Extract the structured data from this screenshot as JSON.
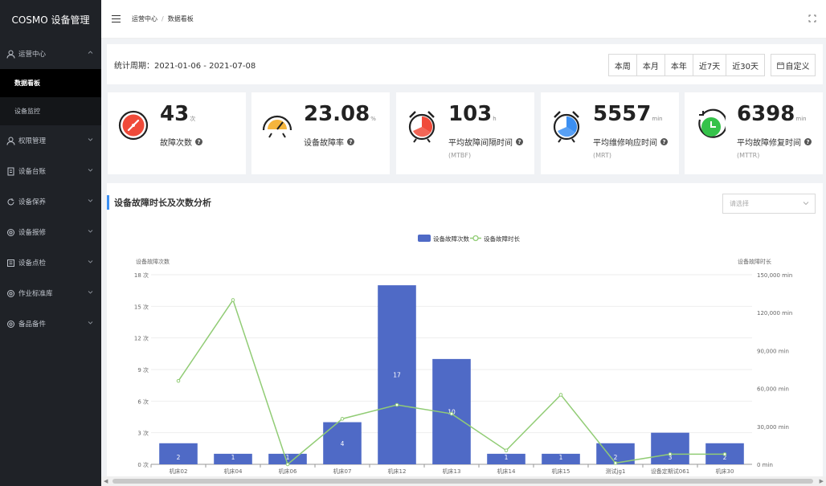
{
  "app": {
    "title": "COSMO 设备管理"
  },
  "sidebar": {
    "groups": [
      {
        "label": "运营中心",
        "icon": "user-icon",
        "expanded": true,
        "children": [
          {
            "label": "数据看板",
            "active": true
          },
          {
            "label": "设备监控",
            "active": false
          }
        ]
      },
      {
        "label": "权限管理",
        "icon": "user-icon"
      },
      {
        "label": "设备台账",
        "icon": "ledger-icon"
      },
      {
        "label": "设备保养",
        "icon": "refresh-icon"
      },
      {
        "label": "设备报修",
        "icon": "gear-icon"
      },
      {
        "label": "设备点检",
        "icon": "checklist-icon"
      },
      {
        "label": "作业标准库",
        "icon": "gear-icon"
      },
      {
        "label": "备品备件",
        "icon": "gear-icon"
      }
    ]
  },
  "header": {
    "breadcrumb": [
      "运营中心",
      "数据看板"
    ],
    "separator": "/"
  },
  "period": {
    "label": "统计周期：2021-01-06 - 2021-07-08",
    "buttons": [
      "本周",
      "本月",
      "本年",
      "近7天",
      "近30天"
    ],
    "custom_label": "自定义"
  },
  "kpis": [
    {
      "value": "43",
      "unit": "次",
      "label": "故障次数",
      "sub": "",
      "icon": "fault-count-icon",
      "color": "#f04b3a"
    },
    {
      "value": "23.08",
      "unit": "%",
      "label": "设备故障率",
      "sub": "",
      "icon": "gauge-icon",
      "color": "#f5b53d"
    },
    {
      "value": "103",
      "unit": "h",
      "label": "平均故障间隔时间",
      "sub": "(MTBF)",
      "icon": "alarm-clock-icon",
      "color": "#f04b3a"
    },
    {
      "value": "5557",
      "unit": "min",
      "label": "平均维修响应时间",
      "sub": "(MRT)",
      "icon": "alarm-clock-icon",
      "color": "#3b8ff2"
    },
    {
      "value": "6398",
      "unit": "min",
      "label": "平均故障修复时间",
      "sub": "(MTTR)",
      "icon": "timer-icon",
      "color": "#35c24a"
    }
  ],
  "analysis": {
    "title": "设备故障时长及次数分析",
    "select_placeholder": "请选择"
  },
  "chart_data": {
    "type": "bar",
    "title": "",
    "categories": [
      "机床02",
      "机床04",
      "机床06",
      "机床07",
      "机床12",
      "机床13",
      "机床14",
      "机床15",
      "测试jg1",
      "设备定期试061",
      "机床30"
    ],
    "series": [
      {
        "name": "设备故障次数",
        "type": "bar",
        "color": "#4f6ac6",
        "values": [
          2,
          1,
          1,
          4,
          17,
          10,
          1,
          1,
          2,
          3,
          2
        ]
      },
      {
        "name": "设备故障时长",
        "type": "line",
        "color": "#91cc75",
        "values": [
          66000,
          130000,
          0,
          36000,
          47000,
          40000,
          11000,
          55000,
          1000,
          8000,
          8000
        ]
      }
    ],
    "y_left": {
      "label": "设备故障次数",
      "ticks": [
        "0 次",
        "3 次",
        "6 次",
        "9 次",
        "12 次",
        "15 次",
        "18 次"
      ],
      "min": 0,
      "max": 18
    },
    "y_right": {
      "label": "设备故障时长",
      "ticks": [
        "0 min",
        "30,000 min",
        "60,000 min",
        "90,000 min",
        "120,000 min",
        "150,000 min"
      ],
      "min": 0,
      "max": 150000
    },
    "legend_position": "top-center",
    "grid": true
  }
}
